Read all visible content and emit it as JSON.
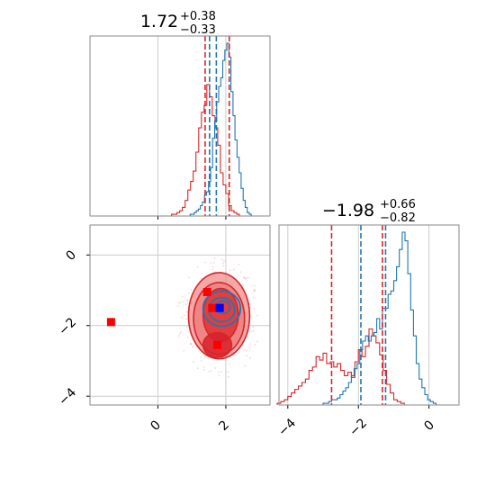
{
  "colors": {
    "blue": "#1f77b4",
    "red": "#d62728",
    "red_fill": "#f08c8c",
    "red_dark": "#e03030",
    "pure_blue": "#0000ff",
    "pure_red": "#ff0000",
    "grid": "#cccccc",
    "frame": "#888888"
  },
  "chart_data": [
    {
      "panel": "top-left",
      "type": "histogram",
      "title": {
        "value": "1.72",
        "plus": "+0.38",
        "minus": "−0.33"
      },
      "x_range": [
        -2.0,
        3.3
      ],
      "x_ticks": [
        0,
        2
      ],
      "tick_labels_visible": false,
      "grid": true,
      "series": [
        {
          "color": "blue",
          "bin_start": 0.95,
          "bin_width": 0.06,
          "counts": [
            1,
            1,
            2,
            3,
            4,
            6,
            8,
            12,
            14,
            20,
            28,
            45,
            55,
            66,
            75,
            80,
            90,
            96,
            100,
            92,
            72,
            58,
            44,
            34,
            25,
            16,
            9,
            5,
            2,
            1
          ]
        },
        {
          "color": "red",
          "bin_start": 0.4,
          "bin_width": 0.08,
          "counts": [
            1,
            1,
            2,
            3,
            5,
            9,
            15,
            20,
            26,
            37,
            51,
            60,
            64,
            76,
            69,
            58,
            51,
            41,
            25,
            18,
            13,
            6,
            3,
            2,
            1
          ]
        }
      ],
      "quantile_lines": [
        {
          "color": "red",
          "x": 1.39
        },
        {
          "color": "blue",
          "x": 1.52
        },
        {
          "color": "red",
          "x": 2.1
        },
        {
          "color": "blue",
          "x": 1.72
        }
      ]
    },
    {
      "panel": "bottom-left",
      "type": "scatter",
      "x_range": [
        -2.0,
        3.3
      ],
      "y_range": [
        -4.25,
        0.85
      ],
      "x_ticks": [
        0,
        2
      ],
      "y_ticks": [
        0,
        -2,
        -4
      ],
      "x_tick_labels": [
        "0",
        "2"
      ],
      "y_tick_labels": [
        "0",
        "−2",
        "−4"
      ],
      "grid": true,
      "contours": {
        "red": [
          {
            "cx": 1.8,
            "cy": -1.72,
            "rx": 0.9,
            "ry": 1.22
          },
          {
            "cx": 1.8,
            "cy": -1.8,
            "rx": 0.75,
            "ry": 1.02
          },
          {
            "cx": 1.85,
            "cy": -1.7,
            "rx": 0.52,
            "ry": 0.75
          },
          {
            "cx": 1.75,
            "cy": -2.55,
            "rx": 0.42,
            "ry": 0.35
          }
        ],
        "blue": [
          {
            "cx": 1.88,
            "cy": -1.52,
            "rx": 0.55,
            "ry": 0.5
          },
          {
            "cx": 1.88,
            "cy": -1.55,
            "rx": 0.38,
            "ry": 0.34
          },
          {
            "cx": 1.92,
            "cy": -1.48,
            "rx": 0.2,
            "ry": 0.18
          }
        ]
      },
      "markers": [
        {
          "color": "pure_red",
          "x": -1.38,
          "y": -1.9
        },
        {
          "color": "pure_red",
          "x": 1.45,
          "y": -1.05
        },
        {
          "color": "pure_red",
          "x": 1.6,
          "y": -1.5
        },
        {
          "color": "pure_red",
          "x": 1.75,
          "y": -2.55
        },
        {
          "color": "pure_blue",
          "x": 1.82,
          "y": -1.5
        }
      ]
    },
    {
      "panel": "bottom-right",
      "type": "histogram",
      "title": {
        "value": "−1.98",
        "plus": "+0.66",
        "minus": "−0.82"
      },
      "x_range": [
        -4.25,
        0.85
      ],
      "x_ticks": [
        -4,
        -2,
        0
      ],
      "x_tick_labels": [
        "−4",
        "−2",
        "0"
      ],
      "grid": true,
      "series": [
        {
          "color": "blue",
          "bin_start": -3.0,
          "bin_width": 0.08,
          "counts": [
            1,
            1,
            2,
            3,
            3,
            4,
            6,
            8,
            10,
            13,
            17,
            21,
            24,
            32,
            37,
            40,
            37,
            40,
            42,
            50,
            44,
            56,
            56,
            64,
            66,
            72,
            80,
            90,
            100,
            95,
            76,
            55,
            40,
            24,
            15,
            10,
            6,
            3,
            2,
            1
          ]
        },
        {
          "color": "red",
          "bin_start": -4.3,
          "bin_width": 0.1,
          "counts": [
            1,
            2,
            3,
            5,
            7,
            9,
            11,
            13,
            15,
            20,
            22,
            28,
            26,
            30,
            24,
            25,
            22,
            24,
            20,
            17,
            19,
            16,
            25,
            32,
            28,
            34,
            44,
            40,
            36,
            29,
            20,
            12,
            7,
            3,
            2,
            1
          ]
        }
      ],
      "quantile_lines": [
        {
          "color": "red",
          "x": -2.76
        },
        {
          "color": "blue",
          "x": -1.93
        },
        {
          "color": "red",
          "x": -1.32
        },
        {
          "color": "blue",
          "x": -1.23
        }
      ]
    }
  ]
}
